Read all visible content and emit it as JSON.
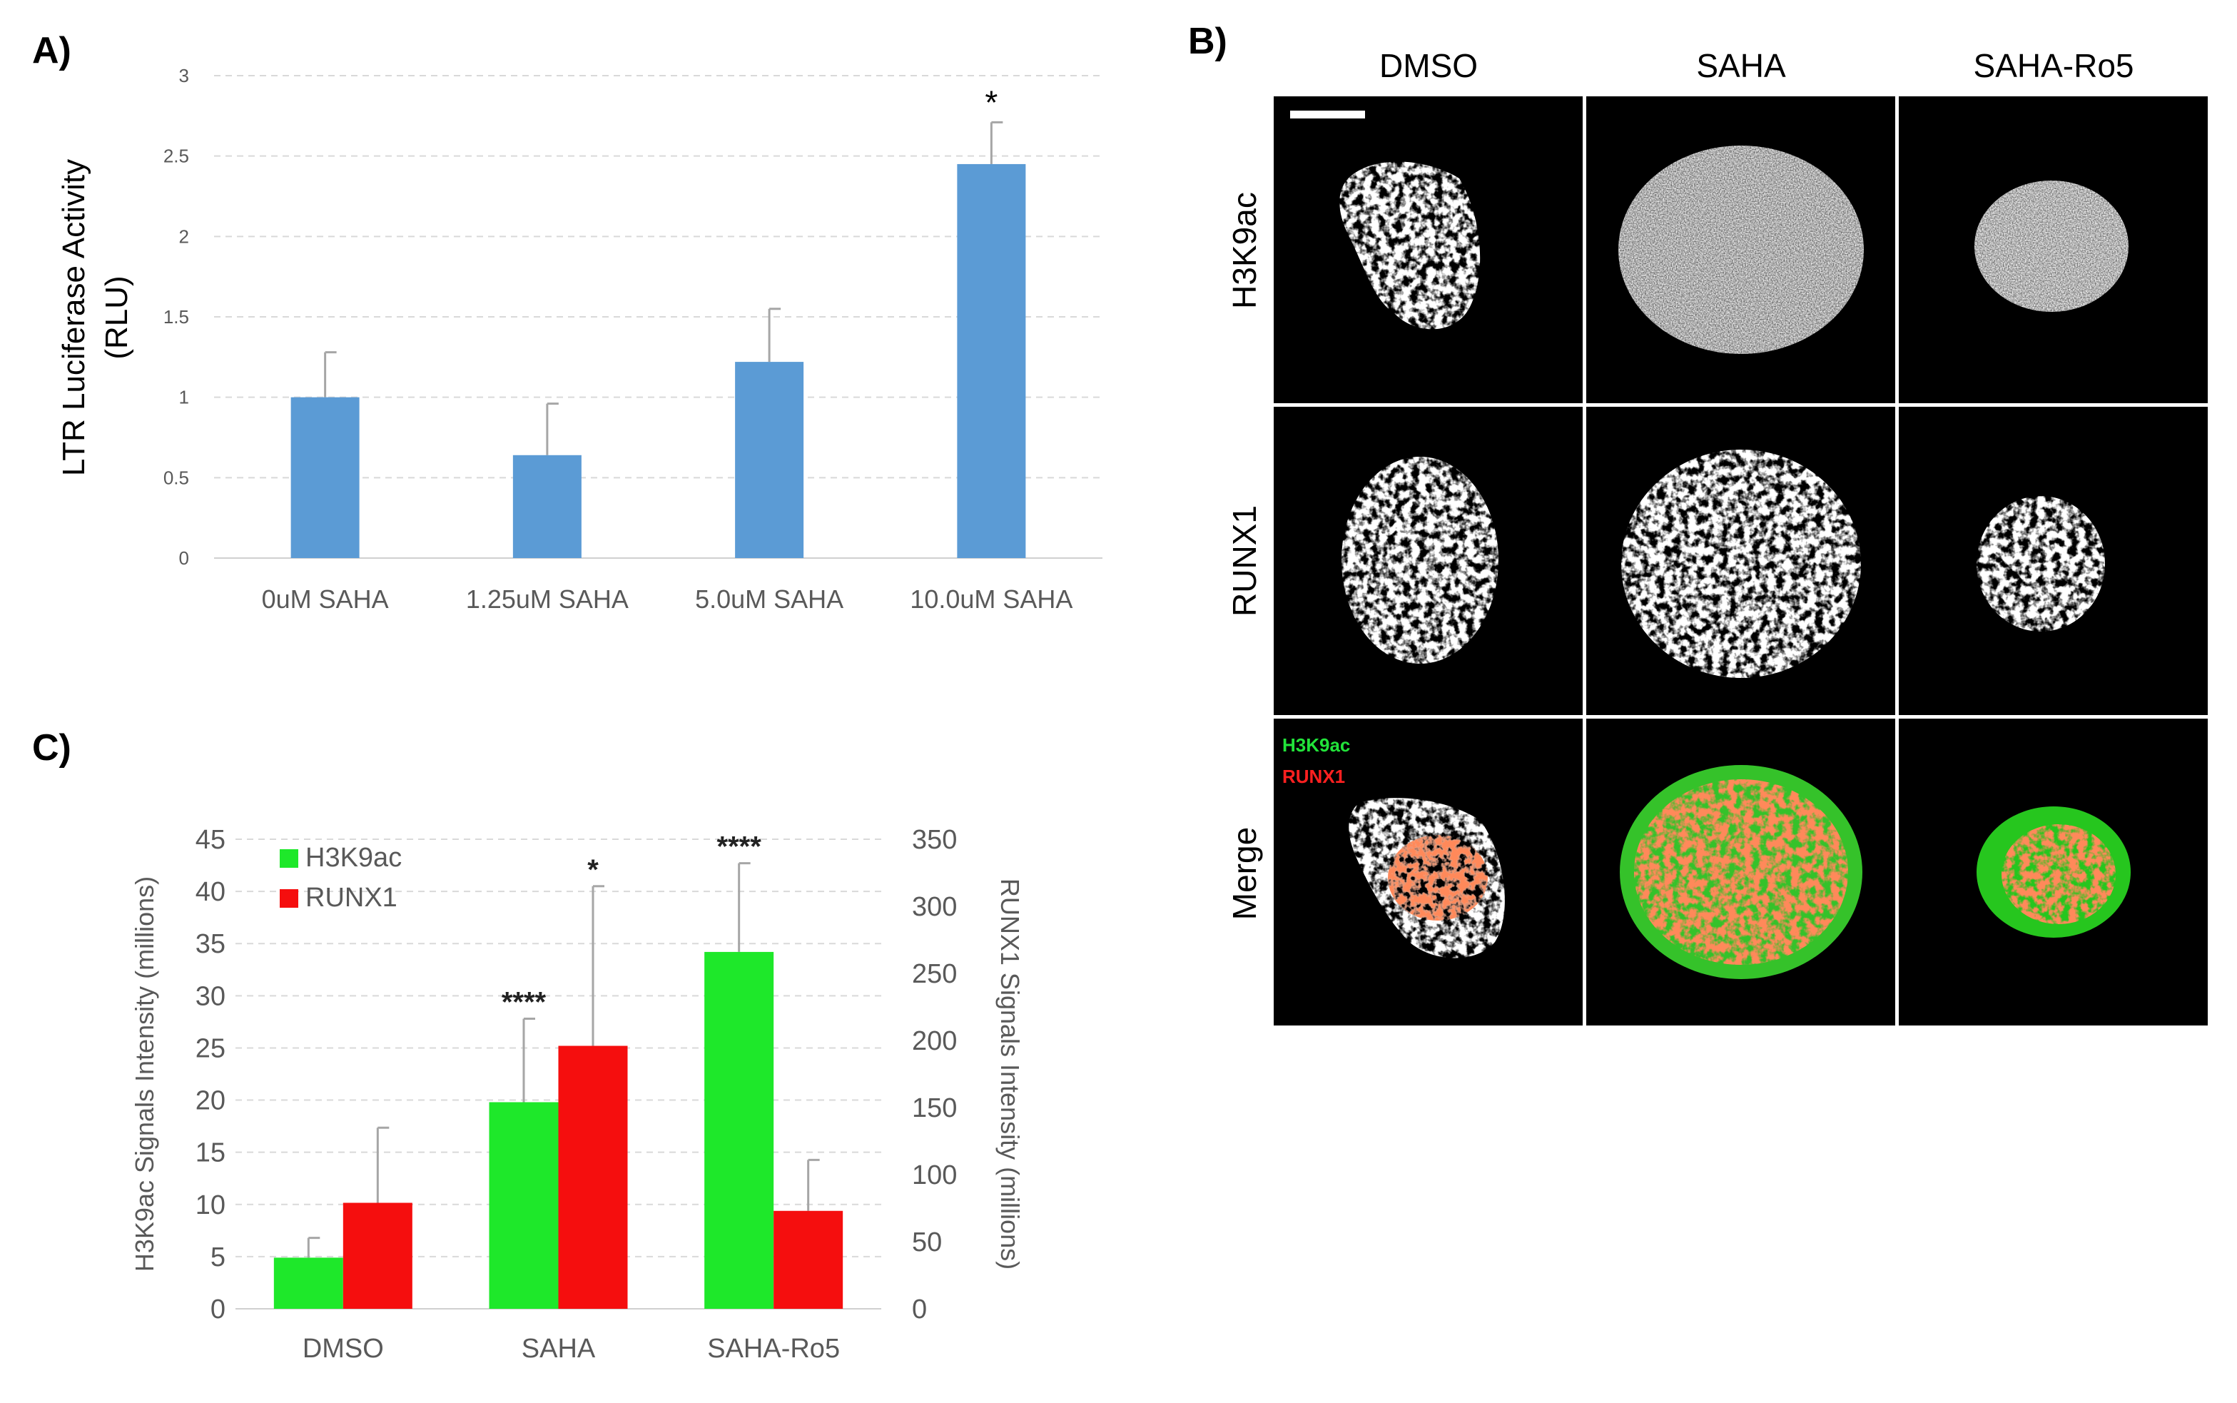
{
  "figure": {
    "panel_a_label": "A)",
    "panel_b_label": "B)",
    "panel_c_label": "C)"
  },
  "chart_data": [
    {
      "type": "bar",
      "panel": "A",
      "title": "",
      "xlabel": "",
      "ylabel": "LTR Luciferase Activity (RLU)",
      "ylabel_lines": [
        "LTR Luciferase Activity",
        "(RLU)"
      ],
      "ylim": [
        0,
        3
      ],
      "yticks": [
        "0",
        "0.5",
        "1",
        "1.5",
        "2",
        "2.5",
        "3"
      ],
      "grid": true,
      "categories": [
        "0uM SAHA",
        "1.25uM SAHA",
        "5.0uM SAHA",
        "10.0uM SAHA"
      ],
      "values": [
        1.0,
        0.64,
        1.22,
        2.45
      ],
      "errors": [
        0.28,
        0.32,
        0.33,
        0.26
      ],
      "significance": [
        "",
        "",
        "",
        "*"
      ],
      "bar_color": "#5b9bd5"
    },
    {
      "type": "bar",
      "panel": "C",
      "title": "",
      "xlabel": "",
      "ylabel_left": "H3K9ac Signals Intensity (millions)",
      "ylabel_right": "RUNX1 Signals Intensity (millions)",
      "ylim_left": [
        0,
        45
      ],
      "yticks_left": [
        "0",
        "5",
        "10",
        "15",
        "20",
        "25",
        "30",
        "35",
        "40",
        "45"
      ],
      "ylim_right": [
        0,
        350
      ],
      "yticks_right": [
        "0",
        "50",
        "100",
        "150",
        "200",
        "250",
        "300",
        "350"
      ],
      "grid": true,
      "legend_position": "top-left",
      "categories": [
        "DMSO",
        "SAHA",
        "SAHA-Ro5"
      ],
      "series": [
        {
          "name": "H3K9ac",
          "axis": "left",
          "color": "#1ee82a",
          "values": [
            4.9,
            19.8,
            34.2
          ],
          "errors": [
            1.9,
            8.0,
            8.5
          ],
          "significance": [
            "",
            "****",
            "****"
          ]
        },
        {
          "name": "RUNX1",
          "axis": "right",
          "color": "#f50e0e",
          "values": [
            79,
            196,
            73
          ],
          "errors": [
            56,
            119,
            38
          ],
          "significance": [
            "",
            "*",
            ""
          ]
        }
      ]
    }
  ],
  "micrographs": {
    "columns": [
      "DMSO",
      "SAHA",
      "SAHA-Ro5"
    ],
    "rows": [
      "H3K9ac",
      "RUNX1",
      "Merge"
    ],
    "merge_legend": [
      {
        "label": "H3K9ac",
        "color": "#22e33a"
      },
      {
        "label": "RUNX1",
        "color": "#ff2020"
      }
    ],
    "scale_bar_color": "#ffffff"
  }
}
